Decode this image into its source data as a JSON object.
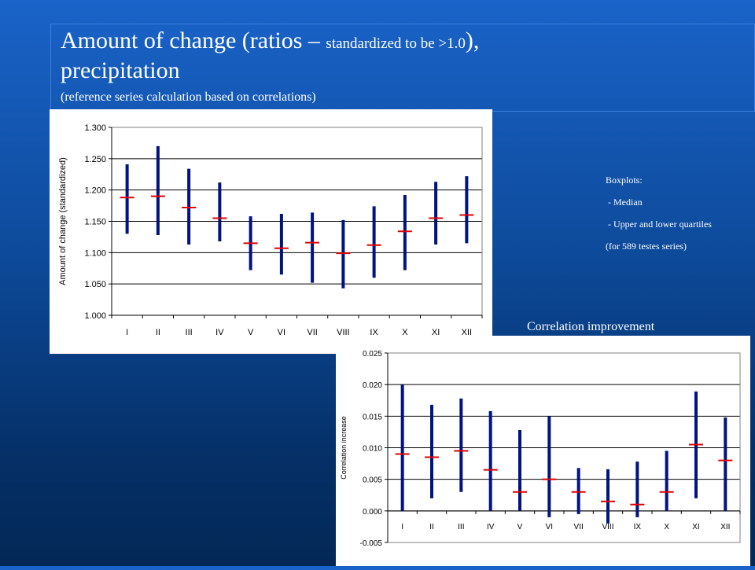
{
  "title": {
    "main_a": "Amount of change (ratios – ",
    "main_small": "standardized to be >1.0",
    "main_b": "),",
    "line2": "precipitation",
    "sub": "(reference series calculation based on correlations)"
  },
  "legend": {
    "heading": "Boxplots:",
    "item1": " - Median",
    "item2": " - Upper and lower quartiles",
    "item3": "(for 589 testes series)"
  },
  "corr_label": "Correlation improvement",
  "colors": {
    "bar": "#00137f",
    "median": "#e00000"
  },
  "chart_data": [
    {
      "type": "boxplot",
      "ylabel": "Amount of change (standardized)",
      "ylim": [
        1.0,
        1.3
      ],
      "yticks": [
        1.0,
        1.05,
        1.1,
        1.15,
        1.2,
        1.25,
        1.3
      ],
      "ytick_labels": [
        "1.000",
        "1.050",
        "1.100",
        "1.150",
        "1.200",
        "1.250",
        "1.300"
      ],
      "categories": [
        "I",
        "II",
        "III",
        "IV",
        "V",
        "VI",
        "VII",
        "VIII",
        "IX",
        "X",
        "XI",
        "XII"
      ],
      "low": [
        1.13,
        1.128,
        1.113,
        1.118,
        1.072,
        1.065,
        1.052,
        1.043,
        1.06,
        1.072,
        1.113,
        1.115
      ],
      "high": [
        1.241,
        1.27,
        1.234,
        1.212,
        1.158,
        1.162,
        1.164,
        1.152,
        1.174,
        1.192,
        1.213,
        1.222
      ],
      "median": [
        1.188,
        1.19,
        1.172,
        1.155,
        1.115,
        1.107,
        1.116,
        1.099,
        1.112,
        1.134,
        1.155,
        1.16
      ],
      "grid": true
    },
    {
      "type": "boxplot",
      "ylabel": "Correlation increase",
      "ylim": [
        -0.005,
        0.025
      ],
      "yticks": [
        -0.005,
        0.0,
        0.005,
        0.01,
        0.015,
        0.02,
        0.025
      ],
      "ytick_labels": [
        "-0.005",
        "0.000",
        "0.005",
        "0.010",
        "0.015",
        "0.020",
        "0.025"
      ],
      "categories": [
        "I",
        "II",
        "III",
        "IV",
        "V",
        "VI",
        "VII",
        "VIII",
        "IX",
        "X",
        "XI",
        "XII"
      ],
      "low": [
        0.0,
        0.002,
        0.003,
        0.0,
        0.0,
        -0.001,
        -0.0005,
        -0.002,
        -0.001,
        0.0,
        0.002,
        0.0
      ],
      "high": [
        0.02,
        0.0168,
        0.0178,
        0.0158,
        0.0128,
        0.015,
        0.0068,
        0.0066,
        0.0078,
        0.0095,
        0.0189,
        0.0148
      ],
      "median": [
        0.009,
        0.0085,
        0.0095,
        0.0065,
        0.003,
        0.005,
        0.003,
        0.0015,
        0.001,
        0.003,
        0.0105,
        0.008
      ],
      "grid": true
    }
  ]
}
